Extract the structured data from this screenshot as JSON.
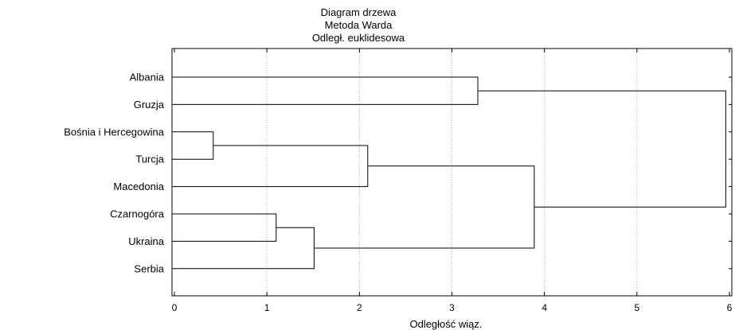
{
  "chart_data": {
    "type": "dendrogram",
    "title_lines": [
      "Diagram drzewa",
      "Metoda Warda",
      "Odległ. euklidesowa"
    ],
    "xlabel": "Odległość wiąz.",
    "xlim": [
      0,
      6
    ],
    "xticks": [
      0,
      1,
      2,
      3,
      4,
      5,
      6
    ],
    "grid": "vertical-dotted",
    "leaves": [
      "Albania",
      "Gruzja",
      "Bośnia i Hercegowina",
      "Turcja",
      "Macedonia",
      "Czarnogóra",
      "Ukraina",
      "Serbia"
    ],
    "merges": [
      {
        "a": "Bośnia i Hercegowina",
        "b": "Turcja",
        "distance": 0.42
      },
      {
        "a": "Czarnogóra",
        "b": "Ukraina",
        "distance": 1.1
      },
      {
        "a": "Czarnogóra+Ukraina",
        "b": "Serbia",
        "distance": 1.51
      },
      {
        "a": "Bośnia i Hercegowina+Turcja",
        "b": "Macedonia",
        "distance": 2.09
      },
      {
        "a": "Albania",
        "b": "Gruzja",
        "distance": 3.28
      },
      {
        "a": "Bośnia i Hercegowina+Turcja+Macedonia",
        "b": "Czarnogóra+Ukraina+Serbia",
        "distance": 3.89
      },
      {
        "a": "Albania+Gruzja",
        "b": "Bośnia i Hercegowina+Turcja+Macedonia+Czarnogóra+Ukraina+Serbia",
        "distance": 5.96
      }
    ]
  }
}
